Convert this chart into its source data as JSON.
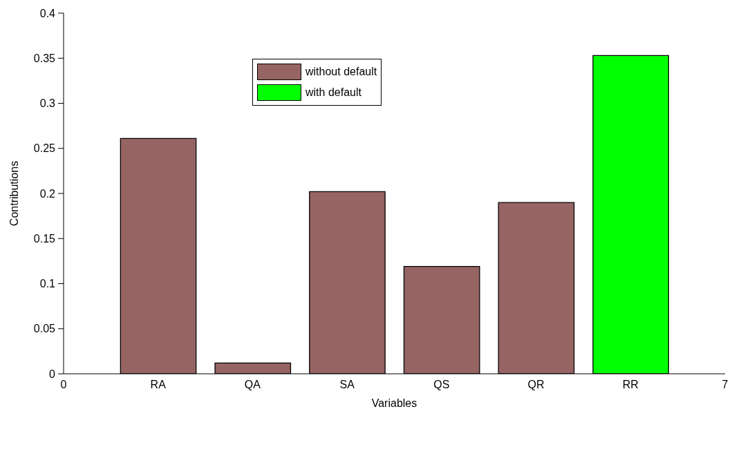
{
  "chart_data": {
    "type": "bar",
    "xlabel": "Variables",
    "ylabel": "Contributions",
    "categories": [
      "0",
      "RA",
      "QA",
      "SA",
      "QS",
      "QR",
      "RR",
      "7"
    ],
    "series": [
      {
        "name": "without default",
        "color": "#966463",
        "values": [
          null,
          0.261,
          0.012,
          0.202,
          0.119,
          0.19,
          null,
          null
        ]
      },
      {
        "name": "with default",
        "color": "#00ff00",
        "values": [
          null,
          null,
          null,
          null,
          null,
          null,
          0.353,
          null
        ]
      }
    ],
    "ylim": [
      0,
      0.4
    ],
    "yticks": [
      0,
      0.05,
      0.1,
      0.15,
      0.2,
      0.25,
      0.3,
      0.35,
      0.4
    ],
    "grid": false,
    "legend": "top"
  }
}
